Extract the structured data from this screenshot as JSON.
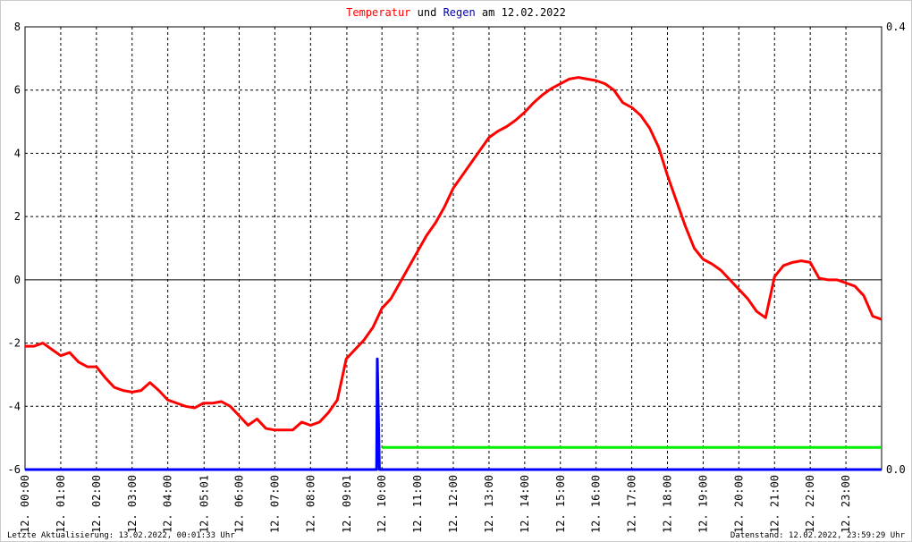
{
  "chart_data": {
    "type": "line",
    "title_parts": [
      "und",
      "am 12.02.2022"
    ],
    "xlim": [
      0,
      24
    ],
    "xticks": [
      {
        "value": 0,
        "label": "12. 00:00"
      },
      {
        "value": 1,
        "label": "12. 01:00"
      },
      {
        "value": 2,
        "label": "12. 02:00"
      },
      {
        "value": 3,
        "label": "12. 03:00"
      },
      {
        "value": 4,
        "label": "12. 04:00"
      },
      {
        "value": 5.017,
        "label": "12. 05:01"
      },
      {
        "value": 6,
        "label": "12. 06:00"
      },
      {
        "value": 7,
        "label": "12. 07:00"
      },
      {
        "value": 8,
        "label": "12. 08:00"
      },
      {
        "value": 9.017,
        "label": "12. 09:01"
      },
      {
        "value": 10,
        "label": "12. 10:00"
      },
      {
        "value": 11,
        "label": "12. 11:00"
      },
      {
        "value": 12,
        "label": "12. 12:00"
      },
      {
        "value": 13,
        "label": "12. 13:00"
      },
      {
        "value": 14,
        "label": "12. 14:00"
      },
      {
        "value": 15,
        "label": "12. 15:00"
      },
      {
        "value": 16,
        "label": "12. 16:00"
      },
      {
        "value": 17,
        "label": "12. 17:00"
      },
      {
        "value": 18,
        "label": "12. 18:00"
      },
      {
        "value": 19,
        "label": "12. 19:00"
      },
      {
        "value": 20,
        "label": "12. 20:00"
      },
      {
        "value": 21,
        "label": "12. 21:00"
      },
      {
        "value": 22,
        "label": "12. 22:00"
      },
      {
        "value": 23,
        "label": "12. 23:00"
      }
    ],
    "ylim": [
      -6,
      8
    ],
    "yticks": [
      -6,
      -4,
      -2,
      0,
      2,
      4,
      6,
      8
    ],
    "y2lim": [
      0,
      0.4
    ],
    "y2ticks": [
      {
        "value": 0,
        "label": "0.0"
      },
      0.4
    ],
    "grid": true,
    "series": [
      {
        "name": "Temperatur",
        "color": "#ff0000",
        "x": [
          0,
          0.25,
          0.5,
          0.75,
          1,
          1.25,
          1.5,
          1.75,
          2,
          2.25,
          2.5,
          2.75,
          3,
          3.25,
          3.5,
          3.75,
          4,
          4.25,
          4.5,
          4.75,
          5,
          5.25,
          5.5,
          5.75,
          6,
          6.25,
          6.5,
          6.75,
          7,
          7.25,
          7.5,
          7.75,
          8,
          8.25,
          8.5,
          8.75,
          9,
          9.25,
          9.5,
          9.75,
          10,
          10.25,
          10.5,
          10.75,
          11,
          11.25,
          11.5,
          11.75,
          12,
          12.25,
          12.5,
          12.75,
          13,
          13.25,
          13.5,
          13.75,
          14,
          14.25,
          14.5,
          14.75,
          15,
          15.25,
          15.5,
          15.75,
          16,
          16.25,
          16.5,
          16.75,
          17,
          17.25,
          17.5,
          17.75,
          18,
          18.25,
          18.5,
          18.75,
          19,
          19.25,
          19.5,
          19.75,
          20,
          20.25,
          20.5,
          20.75,
          21,
          21.25,
          21.5,
          21.75,
          22,
          22.25,
          22.5,
          22.75,
          23,
          23.25,
          23.5,
          23.75,
          24
        ],
        "values": [
          -2.1,
          -2.1,
          -2.0,
          -2.2,
          -2.4,
          -2.3,
          -2.6,
          -2.75,
          -2.75,
          -3.1,
          -3.4,
          -3.5,
          -3.55,
          -3.5,
          -3.25,
          -3.5,
          -3.8,
          -3.9,
          -4.0,
          -4.05,
          -3.9,
          -3.9,
          -3.85,
          -4.0,
          -4.3,
          -4.6,
          -4.4,
          -4.7,
          -4.75,
          -4.75,
          -4.75,
          -4.5,
          -4.6,
          -4.5,
          -4.2,
          -3.8,
          -2.5,
          -2.2,
          -1.9,
          -1.5,
          -0.9,
          -0.6,
          -0.1,
          0.4,
          0.9,
          1.4,
          1.8,
          2.3,
          2.9,
          3.3,
          3.7,
          4.1,
          4.5,
          4.7,
          4.85,
          5.05,
          5.3,
          5.6,
          5.85,
          6.05,
          6.2,
          6.35,
          6.4,
          6.35,
          6.3,
          6.2,
          6.0,
          5.6,
          5.45,
          5.2,
          4.8,
          4.2,
          3.3,
          2.5,
          1.7,
          1.0,
          0.65,
          0.5,
          0.3,
          0.0,
          -0.3,
          -0.6,
          -1.0,
          -1.2,
          0.1,
          0.45,
          0.55,
          0.6,
          0.55,
          0.05,
          0.0,
          0.0,
          -0.1,
          -0.2,
          -0.5,
          -1.15,
          -1.25
        ]
      },
      {
        "name": "Regen",
        "color": "#0000ff",
        "axis": "y2",
        "x": [
          0,
          9.85,
          9.87,
          9.9,
          9.93,
          24
        ],
        "values": [
          0,
          0,
          0.1,
          0.05,
          0,
          0
        ]
      },
      {
        "color": "#00ee00",
        "axis": "y2",
        "x": [
          10,
          24
        ],
        "values": [
          0.02,
          0.02
        ]
      }
    ],
    "footer_left": "Letzte Aktualisierung: 13.02.2022, 00:01:33 Uhr",
    "footer_right": "Datenstand: 12.02.2022, 23:59:29 Uhr"
  }
}
